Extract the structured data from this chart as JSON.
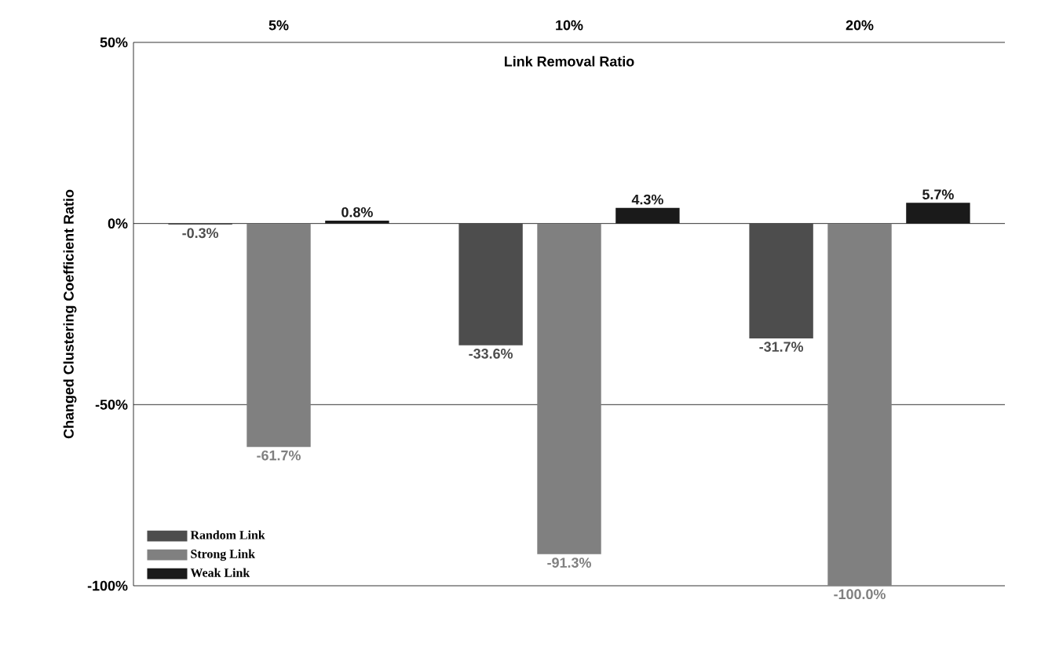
{
  "chart_data": {
    "type": "bar",
    "xlabel": "Link Removal Ratio",
    "ylabel": "Changed Clustering Coefficient Ratio",
    "categories": [
      "5%",
      "10%",
      "20%"
    ],
    "series": [
      {
        "name": "Random Link",
        "color": "#4d4d4d",
        "values": [
          -0.3,
          -33.6,
          -31.7
        ],
        "value_labels": [
          "-0.3%",
          "-33.6%",
          "-31.7%"
        ]
      },
      {
        "name": "Strong Link",
        "color": "#808080",
        "values": [
          -61.7,
          -91.3,
          -100.0
        ],
        "value_labels": [
          "-61.7%",
          "-91.3%",
          "-100.0%"
        ]
      },
      {
        "name": "Weak Link",
        "color": "#1a1a1a",
        "values": [
          0.8,
          4.3,
          5.7
        ],
        "value_labels": [
          "0.8%",
          "4.3%",
          "5.7%"
        ]
      }
    ],
    "ylim": [
      -100,
      50
    ],
    "yticks": [
      {
        "value": -100,
        "label": "-100%"
      },
      {
        "value": -50,
        "label": "-50%"
      },
      {
        "value": 0,
        "label": "0%"
      },
      {
        "value": 50,
        "label": "50%"
      }
    ],
    "grid": "y",
    "legend": "bottom left"
  }
}
